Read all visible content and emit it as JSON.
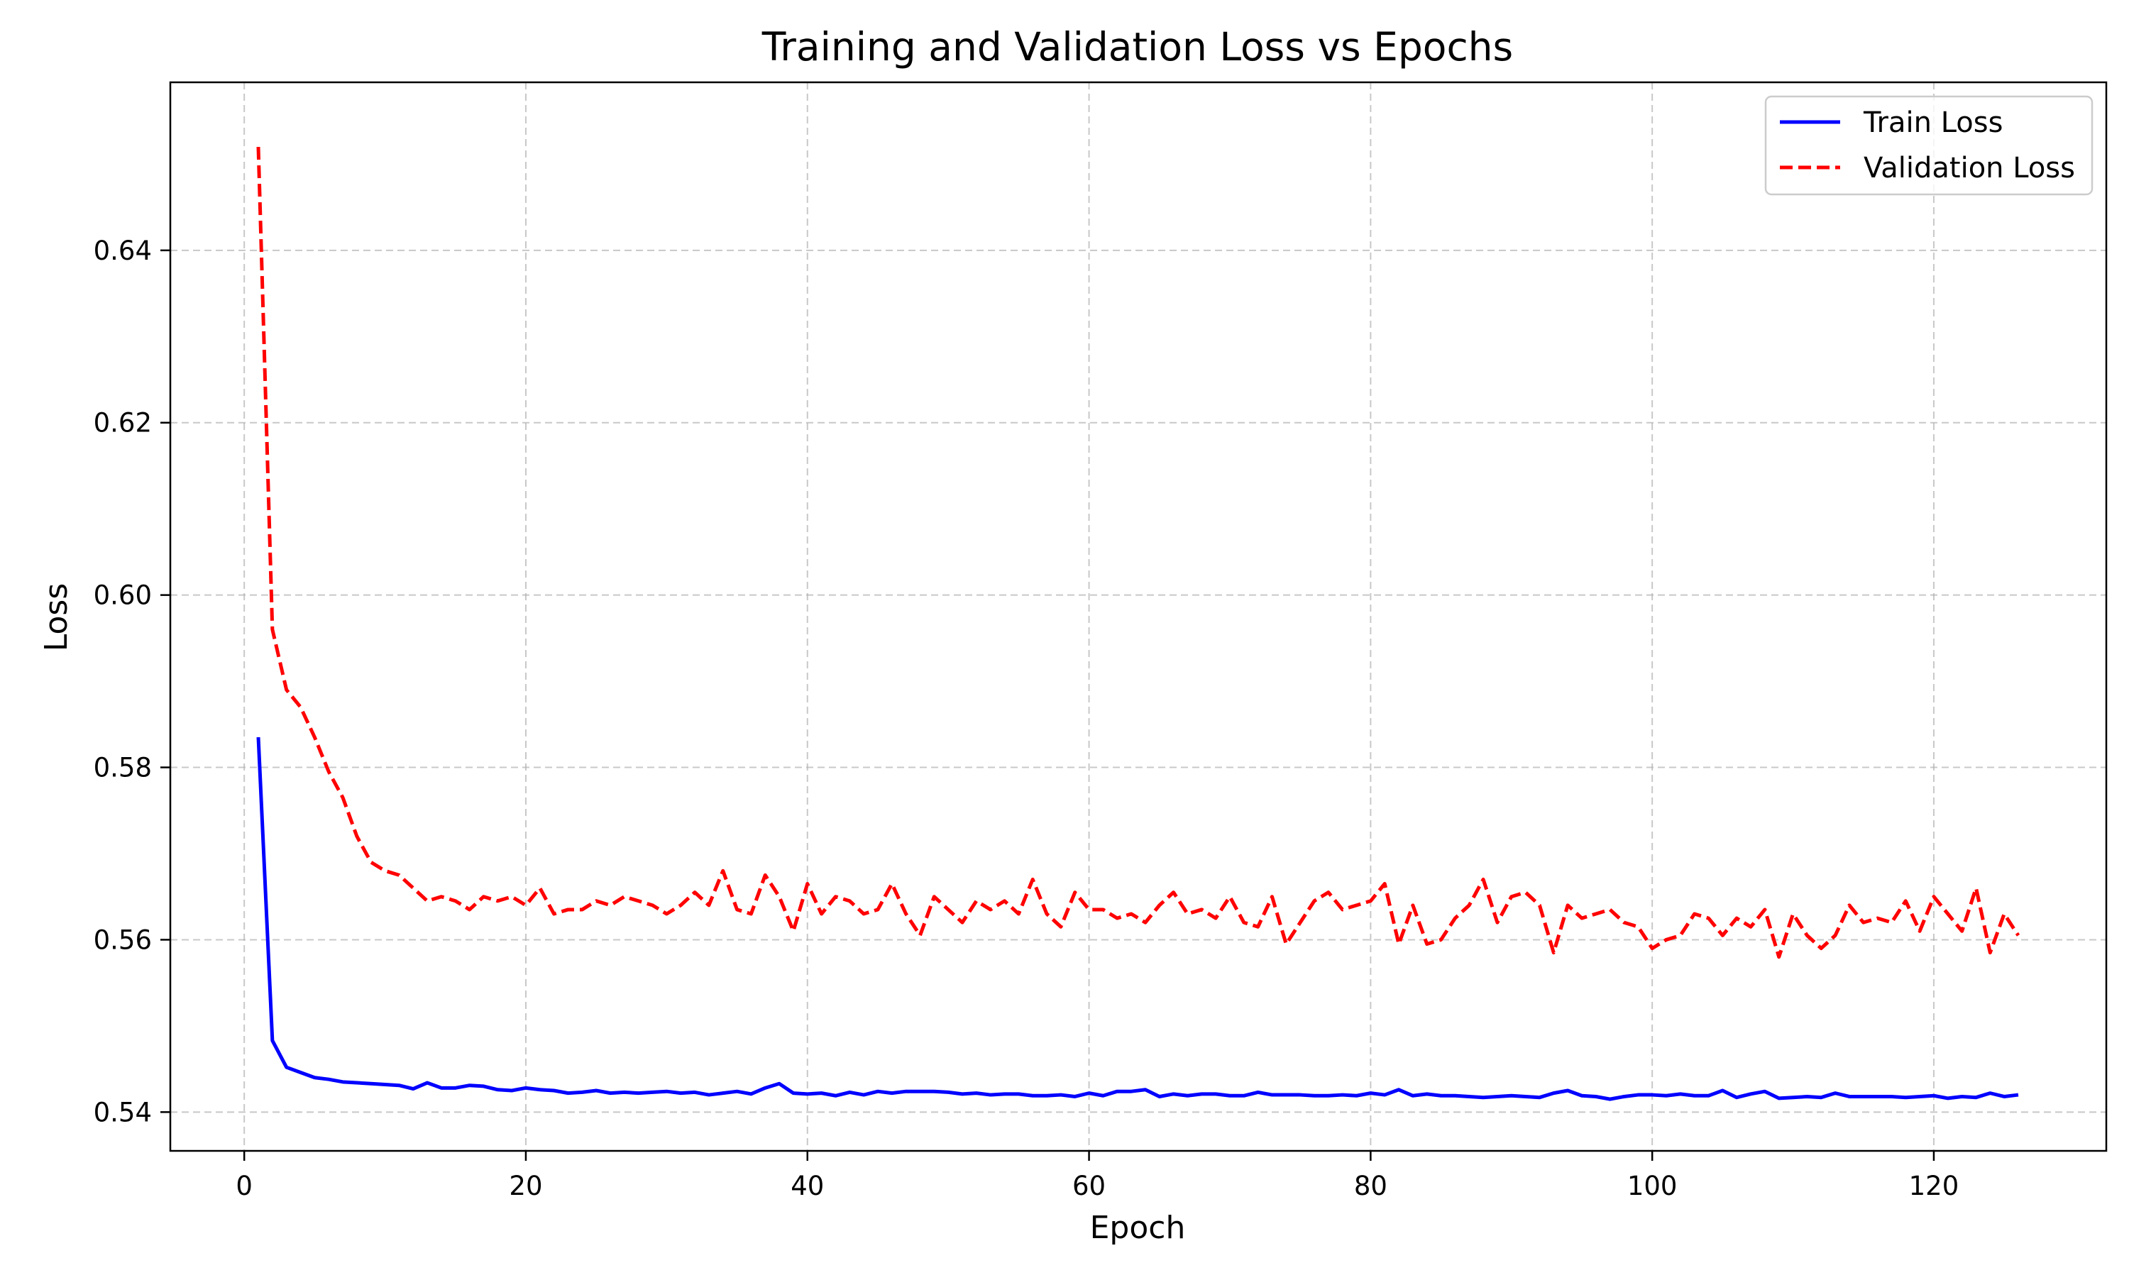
{
  "chart_data": {
    "type": "line",
    "title": "Training and Validation Loss vs Epochs",
    "xlabel": "Epoch",
    "ylabel": "Loss",
    "xlim": [
      -5.25,
      132.25
    ],
    "ylim": [
      0.5355,
      0.6595
    ],
    "xticks": [
      0,
      20,
      40,
      60,
      80,
      100,
      120
    ],
    "yticks": [
      0.54,
      0.56,
      0.58,
      0.6,
      0.62,
      0.64
    ],
    "ytick_labels": [
      "0.54",
      "0.56",
      "0.58",
      "0.60",
      "0.62",
      "0.64"
    ],
    "grid": true,
    "legend_position": "top-right",
    "x_start": 1,
    "x_step": 1,
    "series": [
      {
        "name": "Train Loss",
        "color": "#0000ff",
        "line_style": "solid",
        "values": [
          0.5835,
          0.5483,
          0.5452,
          0.5446,
          0.544,
          0.5438,
          0.5435,
          0.5434,
          0.5433,
          0.5432,
          0.5431,
          0.5427,
          0.5434,
          0.5428,
          0.5428,
          0.5431,
          0.543,
          0.5426,
          0.5425,
          0.5428,
          0.5426,
          0.5425,
          0.5422,
          0.5423,
          0.5425,
          0.5422,
          0.5423,
          0.5422,
          0.5423,
          0.5424,
          0.5422,
          0.5423,
          0.542,
          0.5422,
          0.5424,
          0.5421,
          0.5428,
          0.5433,
          0.5422,
          0.5421,
          0.5422,
          0.5419,
          0.5423,
          0.542,
          0.5424,
          0.5422,
          0.5424,
          0.5424,
          0.5424,
          0.5423,
          0.5421,
          0.5422,
          0.542,
          0.5421,
          0.5421,
          0.5419,
          0.5419,
          0.542,
          0.5418,
          0.5422,
          0.5419,
          0.5424,
          0.5424,
          0.5426,
          0.5418,
          0.5421,
          0.5419,
          0.5421,
          0.5421,
          0.5419,
          0.5419,
          0.5423,
          0.542,
          0.542,
          0.542,
          0.5419,
          0.5419,
          0.542,
          0.5419,
          0.5422,
          0.542,
          0.5426,
          0.5419,
          0.5421,
          0.5419,
          0.5419,
          0.5418,
          0.5417,
          0.5418,
          0.5419,
          0.5418,
          0.5417,
          0.5422,
          0.5425,
          0.5419,
          0.5418,
          0.5415,
          0.5418,
          0.542,
          0.542,
          0.5419,
          0.5421,
          0.5419,
          0.5419,
          0.5425,
          0.5417,
          0.5421,
          0.5424,
          0.5416,
          0.5417,
          0.5418,
          0.5417,
          0.5422,
          0.5418,
          0.5418,
          0.5418,
          0.5418,
          0.5417,
          0.5418,
          0.5419,
          0.5416,
          0.5418,
          0.5417,
          0.5422,
          0.5418,
          0.542
        ]
      },
      {
        "name": "Validation Loss",
        "color": "#ff0000",
        "line_style": "dashed",
        "values": [
          0.652,
          0.596,
          0.589,
          0.587,
          0.5835,
          0.5795,
          0.5765,
          0.572,
          0.569,
          0.568,
          0.5675,
          0.566,
          0.5645,
          0.565,
          0.5645,
          0.5635,
          0.565,
          0.5645,
          0.565,
          0.564,
          0.566,
          0.563,
          0.5635,
          0.5635,
          0.5645,
          0.564,
          0.565,
          0.5645,
          0.564,
          0.563,
          0.564,
          0.5655,
          0.564,
          0.568,
          0.5635,
          0.563,
          0.5675,
          0.565,
          0.561,
          0.5665,
          0.563,
          0.565,
          0.5645,
          0.563,
          0.5635,
          0.5665,
          0.563,
          0.5605,
          0.565,
          0.5635,
          0.562,
          0.5645,
          0.5635,
          0.5645,
          0.563,
          0.567,
          0.563,
          0.5615,
          0.5655,
          0.5635,
          0.5635,
          0.5625,
          0.563,
          0.562,
          0.564,
          0.5655,
          0.563,
          0.5635,
          0.5625,
          0.565,
          0.562,
          0.5615,
          0.565,
          0.5595,
          0.562,
          0.5645,
          0.5655,
          0.5635,
          0.564,
          0.5645,
          0.5665,
          0.5595,
          0.564,
          0.5595,
          0.56,
          0.5625,
          0.564,
          0.567,
          0.562,
          0.565,
          0.5655,
          0.564,
          0.5585,
          0.564,
          0.5625,
          0.563,
          0.5635,
          0.562,
          0.5615,
          0.559,
          0.56,
          0.5605,
          0.563,
          0.5625,
          0.5605,
          0.5625,
          0.5615,
          0.5635,
          0.558,
          0.563,
          0.5605,
          0.559,
          0.5605,
          0.564,
          0.562,
          0.5625,
          0.562,
          0.5645,
          0.561,
          0.565,
          0.563,
          0.561,
          0.566,
          0.5585,
          0.563,
          0.5605
        ]
      }
    ]
  }
}
